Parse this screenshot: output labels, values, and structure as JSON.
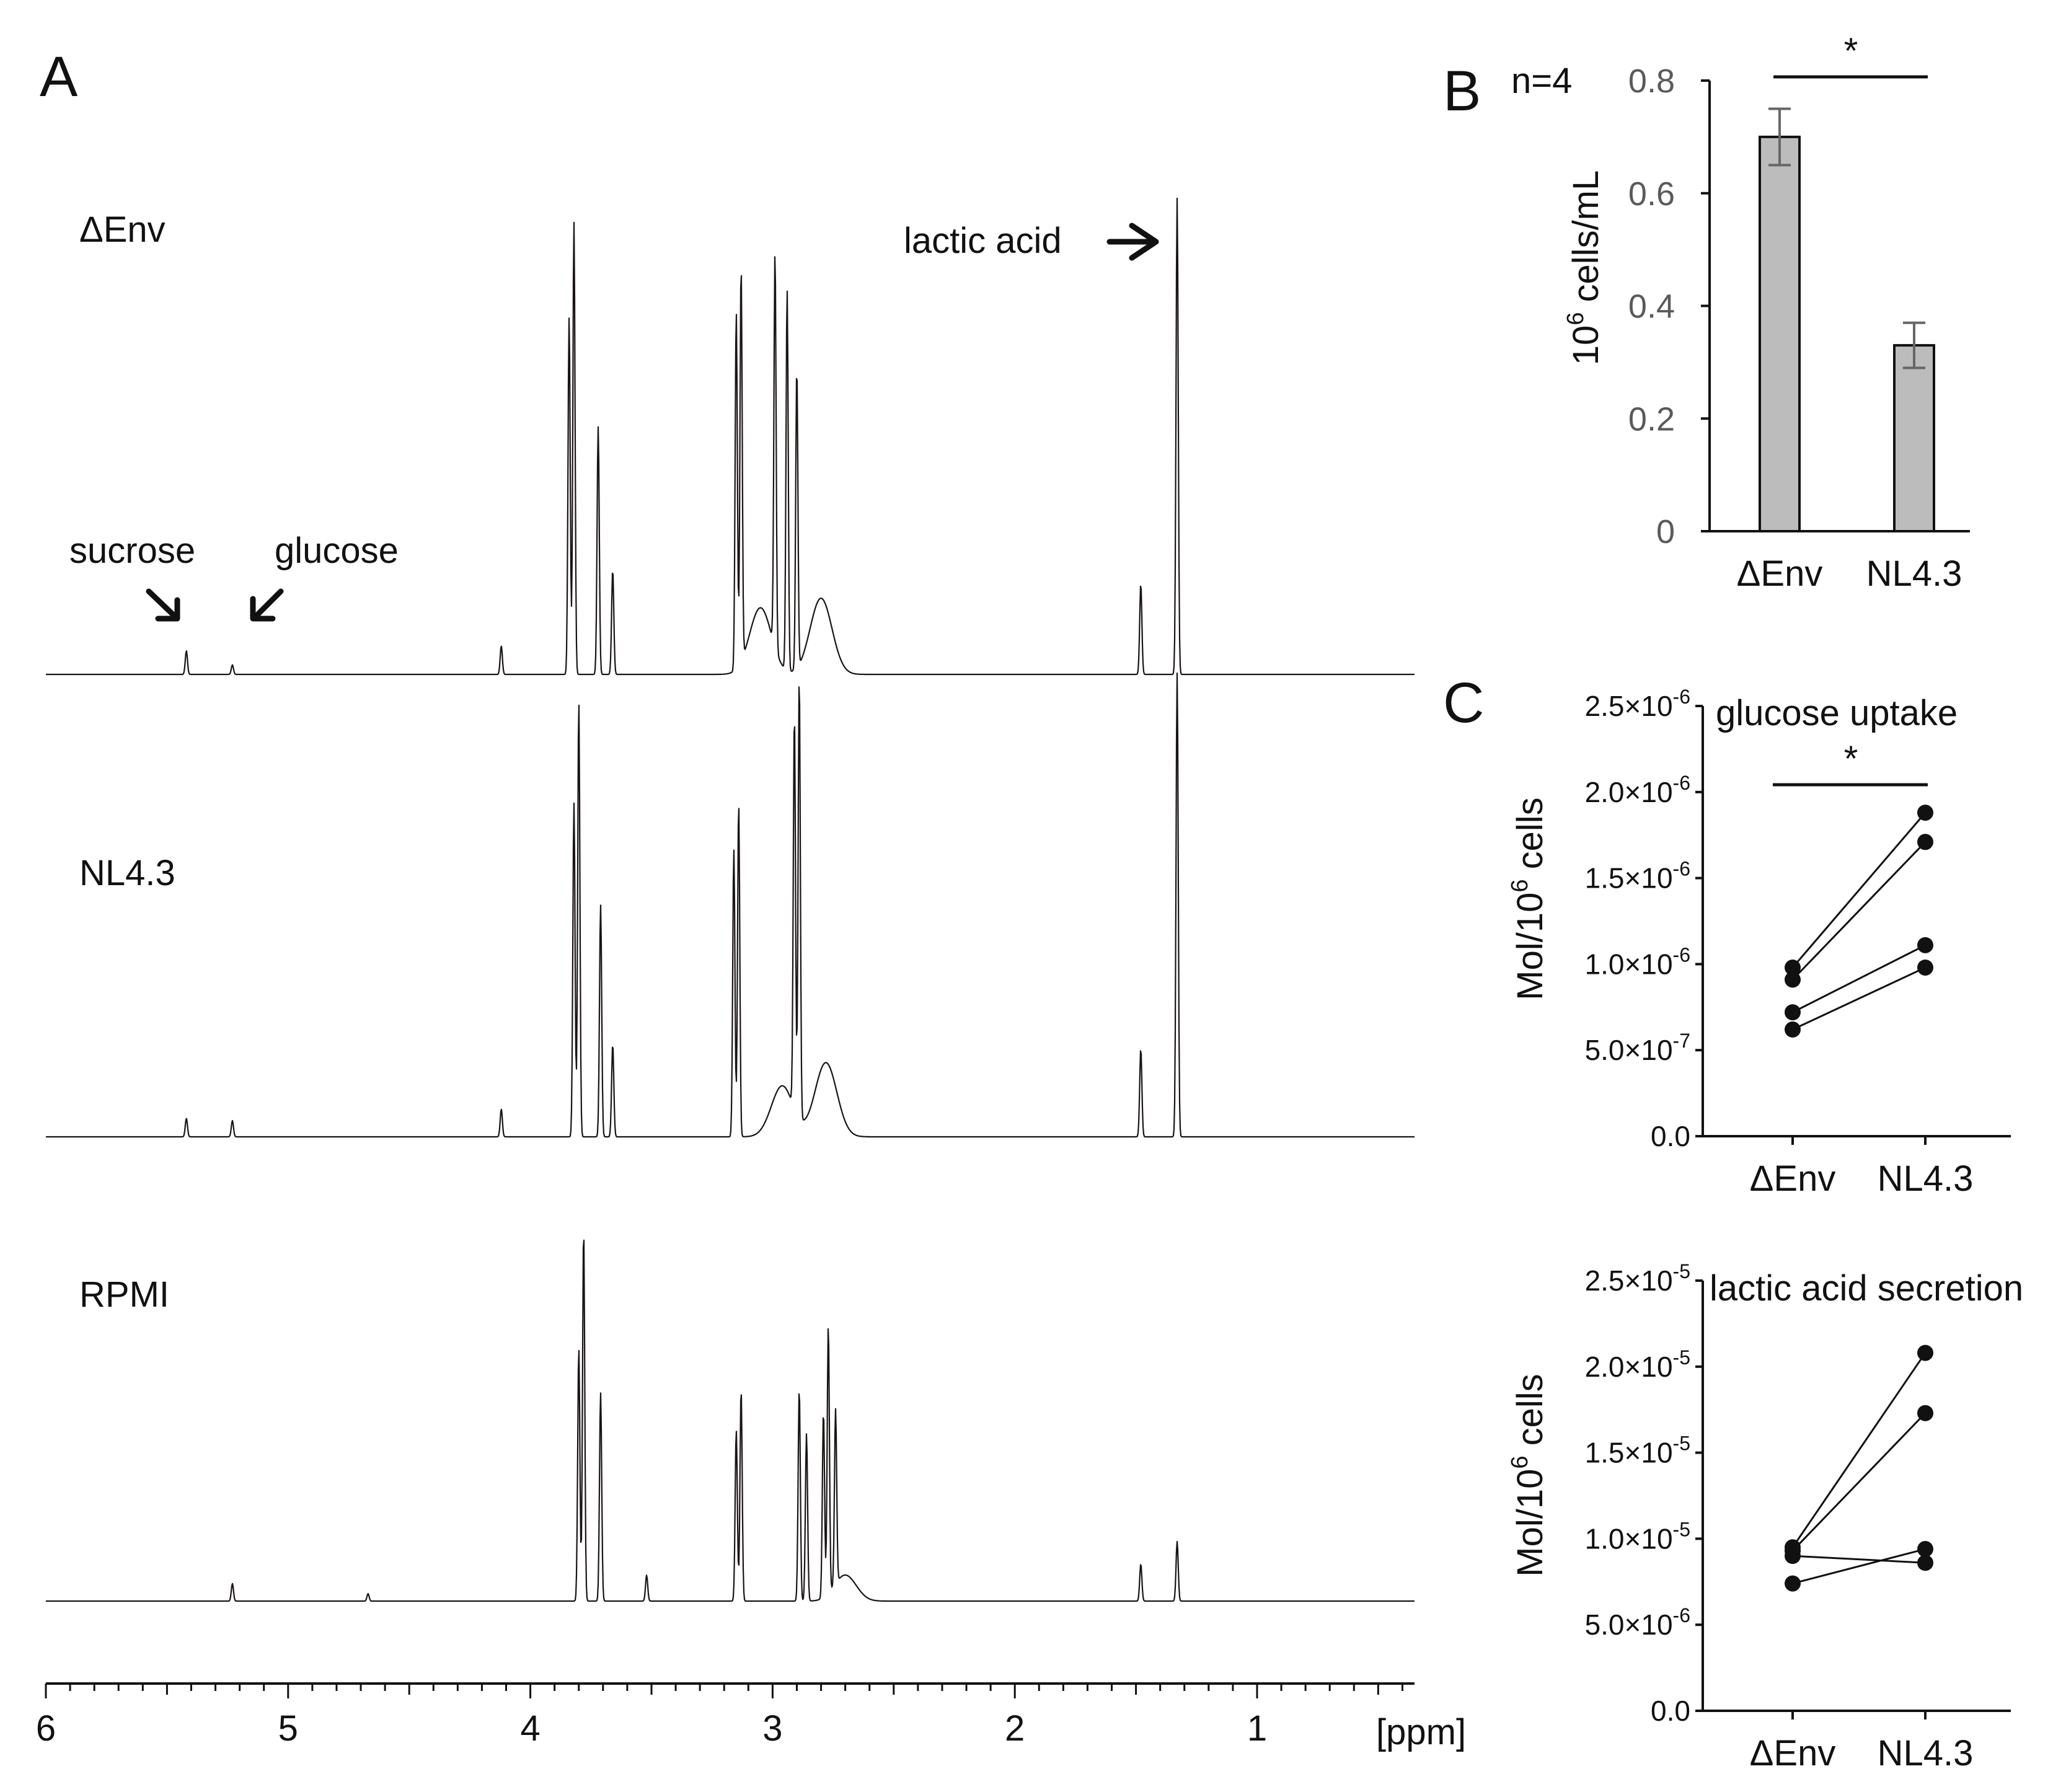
{
  "chart_data": [
    {
      "panel": "A",
      "type": "line",
      "title": "",
      "xlabel": "[ppm]",
      "xlim": [
        6,
        0.35
      ],
      "x_reversed": true,
      "x_ticks": [
        6,
        5,
        4,
        3,
        2,
        1
      ],
      "x_tick_labels": [
        "6",
        "5",
        "4",
        "3",
        "2",
        "1"
      ],
      "series": [
        {
          "name": "ΔEnv",
          "peaks": [
            {
              "ppm": 5.42,
              "height": 0.05
            },
            {
              "ppm": 5.23,
              "height": 0.02
            },
            {
              "ppm": 4.12,
              "height": 0.06
            },
            {
              "ppm": 3.84,
              "height": 0.75
            },
            {
              "ppm": 3.82,
              "height": 0.95
            },
            {
              "ppm": 3.72,
              "height": 0.52
            },
            {
              "ppm": 3.66,
              "height": 0.22
            },
            {
              "ppm": 3.15,
              "height": 0.75
            },
            {
              "ppm": 3.13,
              "height": 0.83
            },
            {
              "ppm": 2.99,
              "height": 0.83
            },
            {
              "ppm": 2.94,
              "height": 0.8
            },
            {
              "ppm": 2.9,
              "height": 0.63
            },
            {
              "ppm": 1.48,
              "height": 0.19
            },
            {
              "ppm": 1.33,
              "height": 1.0
            }
          ],
          "humps": [
            {
              "ppm": 3.05,
              "height": 0.14
            },
            {
              "ppm": 2.8,
              "height": 0.16
            }
          ]
        },
        {
          "name": "NL4.3",
          "peaks": [
            {
              "ppm": 5.42,
              "height": 0.04
            },
            {
              "ppm": 5.23,
              "height": 0.035
            },
            {
              "ppm": 4.12,
              "height": 0.06
            },
            {
              "ppm": 3.82,
              "height": 0.72
            },
            {
              "ppm": 3.8,
              "height": 0.94
            },
            {
              "ppm": 3.71,
              "height": 0.5
            },
            {
              "ppm": 3.66,
              "height": 0.2
            },
            {
              "ppm": 3.16,
              "height": 0.62
            },
            {
              "ppm": 3.14,
              "height": 0.72
            },
            {
              "ppm": 2.91,
              "height": 0.85
            },
            {
              "ppm": 2.89,
              "height": 0.95
            },
            {
              "ppm": 1.48,
              "height": 0.19
            },
            {
              "ppm": 1.33,
              "height": 1.0
            }
          ],
          "humps": [
            {
              "ppm": 2.96,
              "height": 0.11
            },
            {
              "ppm": 2.78,
              "height": 0.16
            }
          ]
        },
        {
          "name": "RPMI",
          "peaks": [
            {
              "ppm": 5.23,
              "height": 0.047
            },
            {
              "ppm": 4.67,
              "height": 0.02
            },
            {
              "ppm": 3.8,
              "height": 0.68
            },
            {
              "ppm": 3.78,
              "height": 1.0
            },
            {
              "ppm": 3.71,
              "height": 0.56
            },
            {
              "ppm": 3.52,
              "height": 0.07
            },
            {
              "ppm": 3.15,
              "height": 0.46
            },
            {
              "ppm": 3.13,
              "height": 0.57
            },
            {
              "ppm": 2.89,
              "height": 0.57
            },
            {
              "ppm": 2.86,
              "height": 0.45
            },
            {
              "ppm": 2.79,
              "height": 0.5
            },
            {
              "ppm": 2.77,
              "height": 0.72
            },
            {
              "ppm": 2.74,
              "height": 0.47
            },
            {
              "ppm": 1.48,
              "height": 0.1
            },
            {
              "ppm": 1.33,
              "height": 0.16
            }
          ],
          "humps": [
            {
              "ppm": 2.7,
              "height": 0.07
            }
          ]
        }
      ],
      "annotations": [
        "lactic acid",
        "sucrose",
        "glucose"
      ]
    },
    {
      "panel": "B",
      "type": "bar",
      "categories": [
        "ΔEnv",
        "NL4.3"
      ],
      "values": [
        0.7,
        0.33
      ],
      "errors": [
        0.05,
        0.04
      ],
      "ylabel": "10⁶ cells/mL",
      "ylim": [
        0,
        0.8
      ],
      "yticks": [
        0,
        0.2,
        0.4,
        0.6,
        0.8
      ],
      "ytick_labels": [
        "0",
        "0.2",
        "0.4",
        "0.6",
        "0.8"
      ],
      "annotations": [
        "n=4",
        "*"
      ]
    },
    {
      "panel": "C",
      "type": "scatter",
      "title": "glucose uptake",
      "categories": [
        "ΔEnv",
        "NL4.3"
      ],
      "ylabel": "Mol/10⁶ cells",
      "ylim": [
        0,
        2.5e-06
      ],
      "yticks": [
        0,
        5e-07,
        1e-06,
        1.5e-06,
        2e-06,
        2.5e-06
      ],
      "ytick_labels": [
        {
          "mantissa": "0.0",
          "exponent": ""
        },
        {
          "mantissa": "5.0×10",
          "exponent": "-7"
        },
        {
          "mantissa": "1.0×10",
          "exponent": "-6"
        },
        {
          "mantissa": "1.5×10",
          "exponent": "-6"
        },
        {
          "mantissa": "2.0×10",
          "exponent": "-6"
        },
        {
          "mantissa": "2.5×10",
          "exponent": "-6"
        }
      ],
      "pairs": [
        [
          9.8e-07,
          1.88e-06
        ],
        [
          9.1e-07,
          1.71e-06
        ],
        [
          7.2e-07,
          1.11e-06
        ],
        [
          6.2e-07,
          9.8e-07
        ]
      ],
      "annotations": [
        "*"
      ]
    },
    {
      "panel": "C",
      "type": "scatter",
      "title": "lactic acid secretion",
      "categories": [
        "ΔEnv",
        "NL4.3"
      ],
      "ylabel": "Mol/10⁶ cells",
      "ylim": [
        0,
        2.5e-05
      ],
      "yticks": [
        0,
        5e-06,
        1e-05,
        1.5e-05,
        2e-05,
        2.5e-05
      ],
      "ytick_labels": [
        {
          "mantissa": "0.0",
          "exponent": ""
        },
        {
          "mantissa": "5.0×10",
          "exponent": "-6"
        },
        {
          "mantissa": "1.0×10",
          "exponent": "-5"
        },
        {
          "mantissa": "1.5×10",
          "exponent": "-5"
        },
        {
          "mantissa": "2.0×10",
          "exponent": "-5"
        },
        {
          "mantissa": "2.5×10",
          "exponent": "-5"
        }
      ],
      "pairs": [
        [
          9.5e-06,
          2.08e-05
        ],
        [
          9.3e-06,
          1.73e-05
        ],
        [
          9e-06,
          8.6e-06
        ],
        [
          7.4e-06,
          9.4e-06
        ]
      ]
    }
  ],
  "labels": {
    "panel_a": "A",
    "panel_b": "B",
    "panel_c": "C",
    "ylabel_b_base": "10",
    "ylabel_b_exp": "6",
    "ylabel_b_rest": " cells/mL",
    "ylabel_c_pre": "Mol/10",
    "ylabel_c_exp": "6",
    "ylabel_c_post": " cells"
  }
}
